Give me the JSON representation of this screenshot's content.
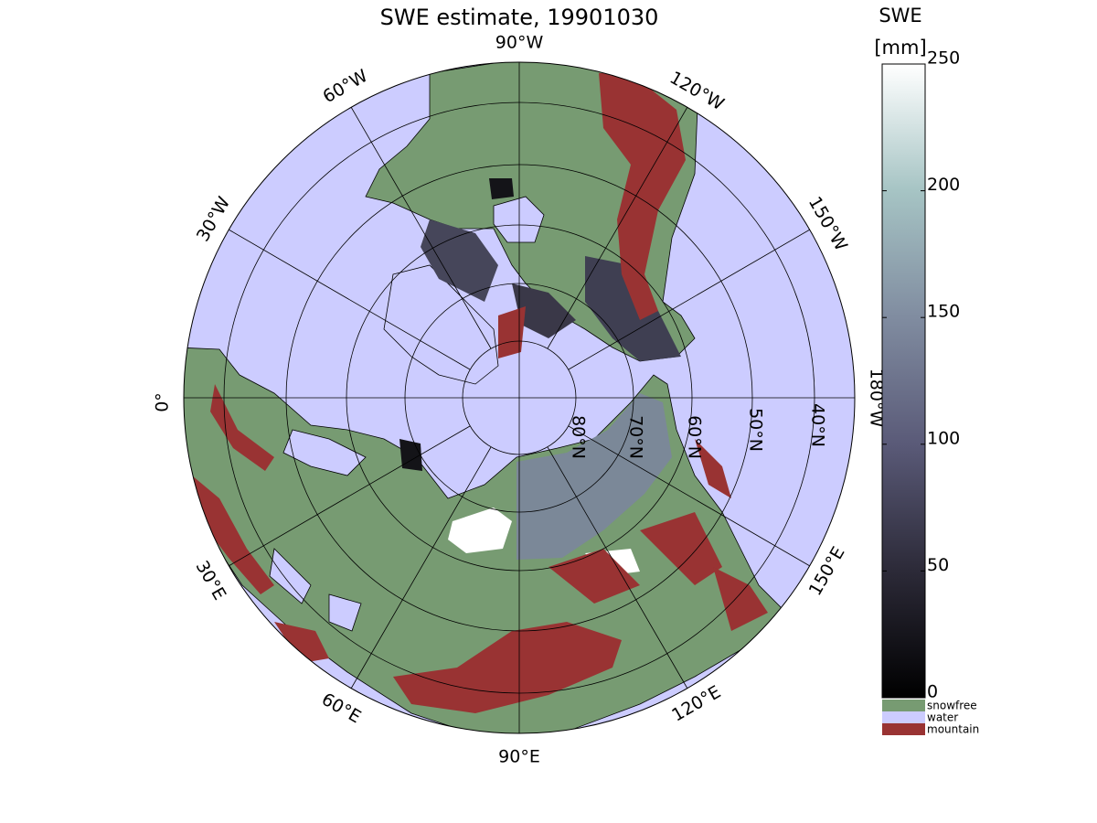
{
  "title": "SWE estimate, 19901030",
  "colorbar": {
    "title": "SWE",
    "unit": "[mm]",
    "lim": [
      0,
      250
    ],
    "ticks": [
      0,
      50,
      100,
      150,
      200,
      250
    ]
  },
  "legend": [
    {
      "name": "snowfree",
      "color": "#779b72"
    },
    {
      "name": "water",
      "color": "#ccccff"
    },
    {
      "name": "mountain",
      "color": "#993333"
    }
  ],
  "meridian_labels": [
    "90°W",
    "120°W",
    "150°W",
    "180°W",
    "150°E",
    "120°E",
    "90°E",
    "60°E",
    "30°E",
    "0°",
    "30°W",
    "60°W"
  ],
  "parallel_labels": [
    "80°N",
    "70°N",
    "60°N",
    "50°N",
    "40°N"
  ]
}
